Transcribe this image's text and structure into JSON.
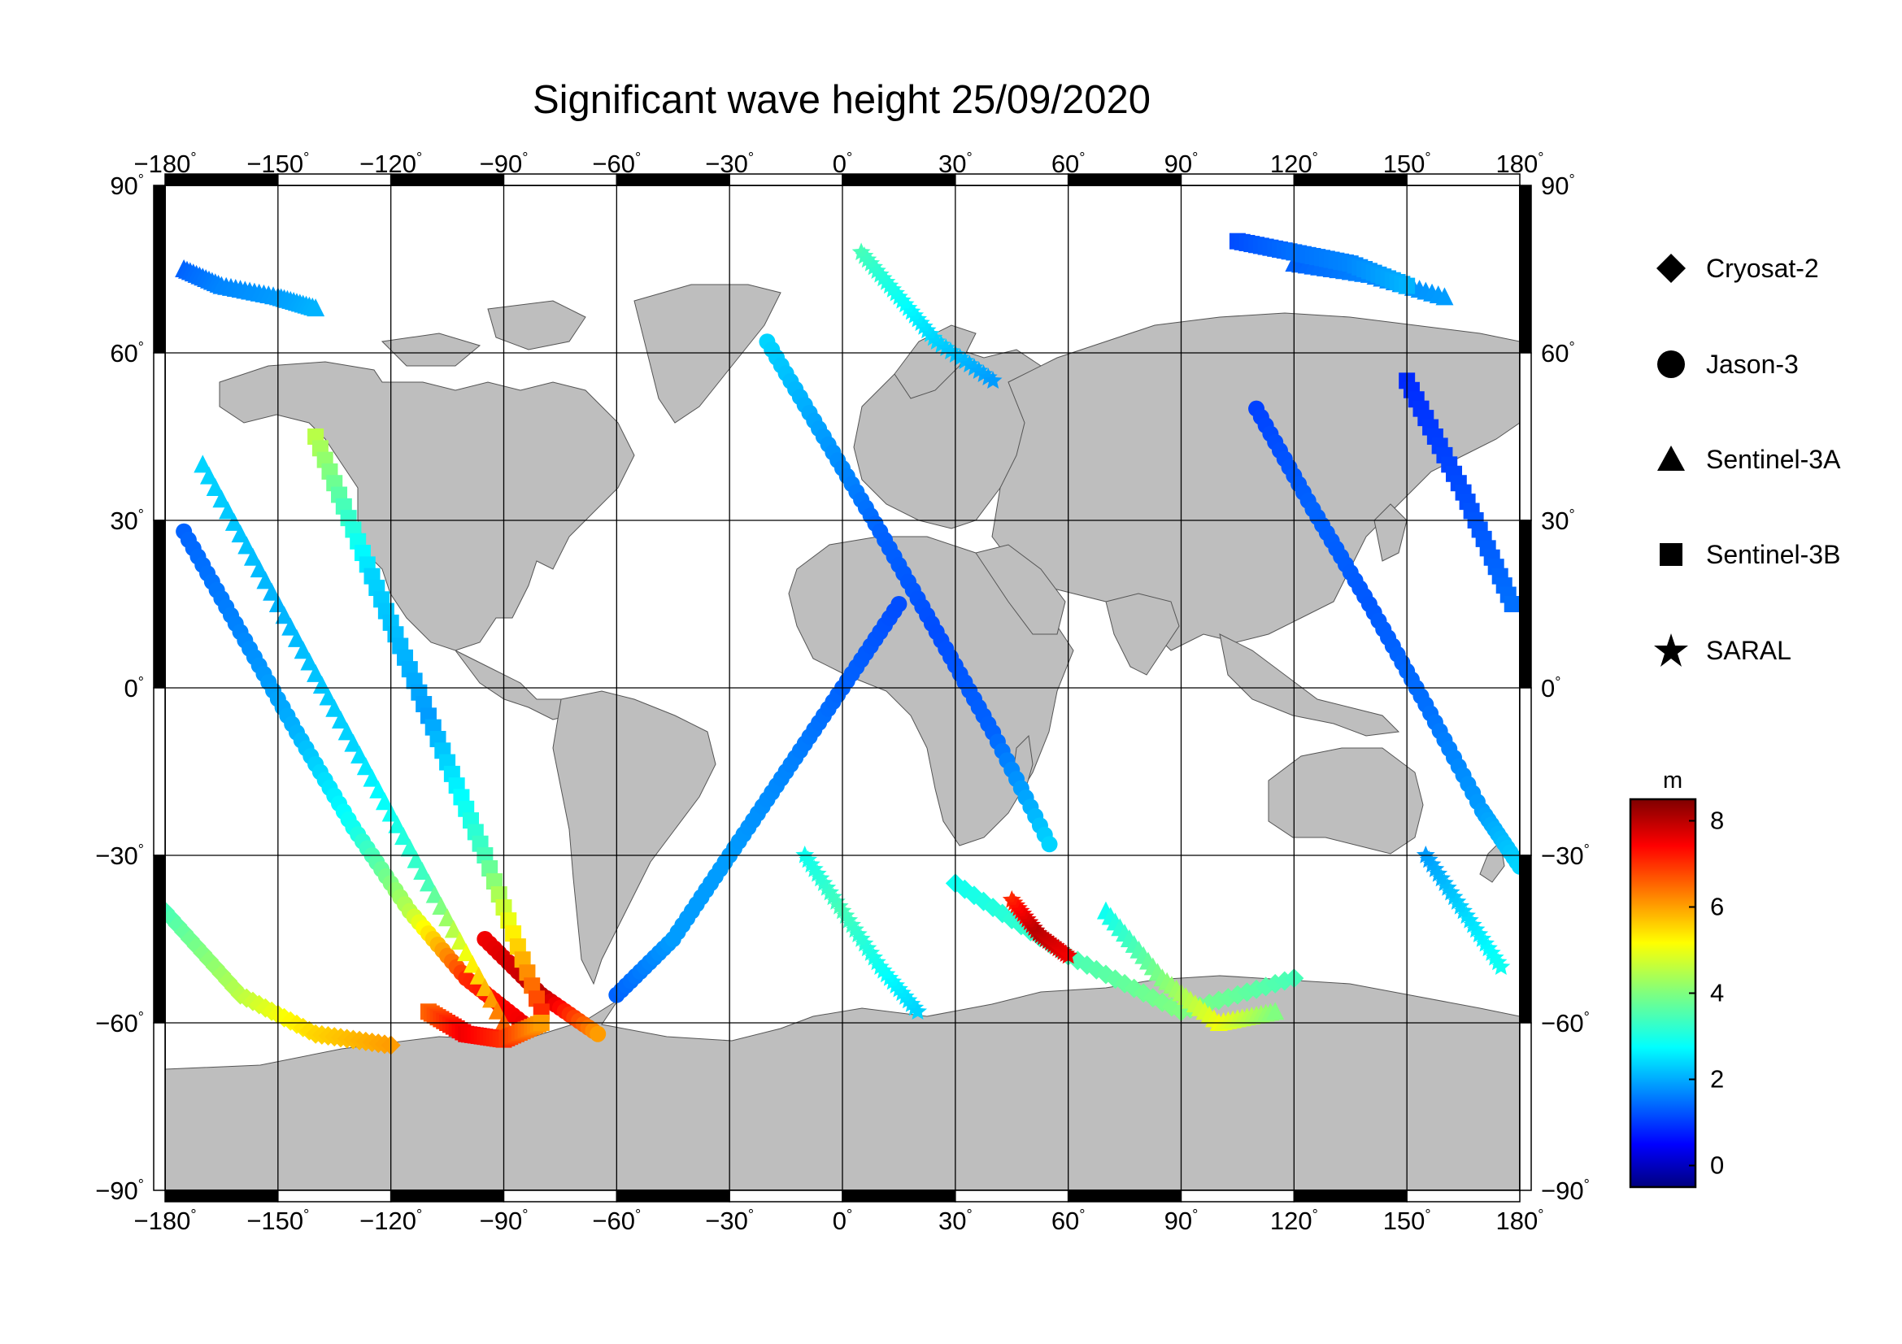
{
  "title": "Significant wave height 25/09/2020",
  "map": {
    "projection": "equirectangular",
    "lon_range": [
      -180,
      180
    ],
    "lat_range": [
      -90,
      90
    ],
    "lon_ticks": [
      "−180",
      "−150",
      "−120",
      "−90",
      "−60",
      "−30",
      "0",
      "30",
      "60",
      "90",
      "120",
      "150",
      "180"
    ],
    "lat_ticks": [
      "90",
      "60",
      "30",
      "0",
      "−30",
      "−60",
      "−90"
    ],
    "degree_symbol": "°",
    "land_color": "#bebebe",
    "ocean_color": "#ffffff",
    "grid": true
  },
  "legend": {
    "items": [
      {
        "label": "Cryosat-2",
        "symbol": "diamond-icon"
      },
      {
        "label": "Jason-3",
        "symbol": "circle-icon"
      },
      {
        "label": "Sentinel-3A",
        "symbol": "triangle-icon"
      },
      {
        "label": "Sentinel-3B",
        "symbol": "square-icon"
      },
      {
        "label": "SARAL",
        "symbol": "star-icon"
      }
    ]
  },
  "colorbar": {
    "unit": "m",
    "ticks": [
      "8",
      "6",
      "4",
      "2",
      "0"
    ],
    "range": [
      -0.5,
      8.5
    ],
    "colormap": "jet"
  },
  "chart_data": {
    "type": "scatter",
    "title": "Significant wave height 25/09/2020",
    "xlabel": "",
    "ylabel": "",
    "xlim": [
      -180,
      180
    ],
    "ylim": [
      -90,
      90
    ],
    "value_unit": "m",
    "series": [
      {
        "name": "Cryosat-2",
        "marker": "diamond",
        "tracks": [
          {
            "lon": [
              -180,
              -160,
              -140,
              -120
            ],
            "lat": [
              -40,
              -55,
              -62,
              -64
            ],
            "swh": [
              3.5,
              4.5,
              5.5,
              6
            ]
          },
          {
            "lon": [
              30,
              60,
              90,
              120
            ],
            "lat": [
              -35,
              -48,
              -58,
              -52
            ],
            "swh": [
              3,
              3.5,
              4,
              3.5
            ]
          }
        ]
      },
      {
        "name": "Jason-3",
        "marker": "circle",
        "tracks": [
          {
            "lon": [
              -175,
              -160,
              -145,
              -130,
              -115,
              -100,
              -85
            ],
            "lat": [
              28,
              10,
              -8,
              -25,
              -40,
              -52,
              -60
            ],
            "swh": [
              1.5,
              1.8,
              2.2,
              3,
              4.5,
              7,
              7.5
            ]
          },
          {
            "lon": [
              -60,
              -45,
              -30,
              -15,
              0,
              15
            ],
            "lat": [
              -55,
              -45,
              -30,
              -15,
              0,
              15
            ],
            "swh": [
              1.5,
              2,
              2,
              1.8,
              1.5,
              1.3
            ]
          },
          {
            "lon": [
              -20,
              -5,
              10,
              25,
              40,
              55
            ],
            "lat": [
              62,
              45,
              28,
              10,
              -8,
              -28
            ],
            "swh": [
              2.5,
              2,
              1.5,
              1.3,
              1.5,
              2.5
            ]
          },
          {
            "lon": [
              110,
              125,
              140,
              155,
              170,
              180
            ],
            "lat": [
              50,
              32,
              15,
              -3,
              -22,
              -32
            ],
            "swh": [
              1.2,
              1.5,
              1.4,
              1.6,
              2,
              2.5
            ]
          },
          {
            "lon": [
              -95,
              -80,
              -65
            ],
            "lat": [
              -45,
              -55,
              -62
            ],
            "swh": [
              7.5,
              8,
              6
            ]
          }
        ]
      },
      {
        "name": "Sentinel-3A",
        "marker": "triangle",
        "tracks": [
          {
            "lon": [
              -175,
              -165,
              -150,
              -140
            ],
            "lat": [
              75,
              72,
              70,
              68
            ],
            "swh": [
              1.5,
              1.8,
              2,
              2.2
            ]
          },
          {
            "lon": [
              -170,
              -150,
              -130,
              -110,
              -90
            ],
            "lat": [
              40,
              15,
              -10,
              -35,
              -60
            ],
            "swh": [
              2.5,
              2.2,
              2.5,
              3.5,
              6.5
            ]
          },
          {
            "lon": [
              120,
              140,
              160
            ],
            "lat": [
              76,
              74,
              70
            ],
            "swh": [
              1.5,
              1.8,
              2
            ]
          },
          {
            "lon": [
              70,
              85,
              100,
              115
            ],
            "lat": [
              -40,
              -52,
              -60,
              -58
            ],
            "swh": [
              3,
              4,
              5,
              4
            ]
          }
        ]
      },
      {
        "name": "Sentinel-3B",
        "marker": "square",
        "tracks": [
          {
            "lon": [
              105,
              120,
              135,
              150
            ],
            "lat": [
              80,
              78,
              76,
              72
            ],
            "swh": [
              1.3,
              1.6,
              1.8,
              2.2
            ]
          },
          {
            "lon": [
              -140,
              -125,
              -110,
              -95,
              -80
            ],
            "lat": [
              45,
              20,
              -5,
              -30,
              -58
            ],
            "swh": [
              4.5,
              2.5,
              2,
              3.5,
              7
            ]
          },
          {
            "lon": [
              -110,
              -100,
              -90,
              -80
            ],
            "lat": [
              -58,
              -62,
              -63,
              -60
            ],
            "swh": [
              6.5,
              7.5,
              7,
              6
            ]
          },
          {
            "lon": [
              150,
              165,
              178
            ],
            "lat": [
              55,
              35,
              15
            ],
            "swh": [
              1,
              1.3,
              1.6
            ]
          }
        ]
      },
      {
        "name": "SARAL",
        "marker": "star",
        "tracks": [
          {
            "lon": [
              5,
              15,
              25,
              40
            ],
            "lat": [
              78,
              70,
              62,
              55
            ],
            "swh": [
              3.5,
              3,
              2.5,
              2
            ]
          },
          {
            "lon": [
              -10,
              0,
              10,
              20
            ],
            "lat": [
              -30,
              -40,
              -50,
              -58
            ],
            "swh": [
              3,
              3.5,
              3,
              2.5
            ]
          },
          {
            "lon": [
              45,
              52,
              60
            ],
            "lat": [
              -38,
              -44,
              -48
            ],
            "swh": [
              7,
              8,
              7.5
            ]
          },
          {
            "lon": [
              155,
              165,
              175
            ],
            "lat": [
              -30,
              -40,
              -50
            ],
            "swh": [
              2,
              2.5,
              3
            ]
          }
        ]
      }
    ]
  }
}
